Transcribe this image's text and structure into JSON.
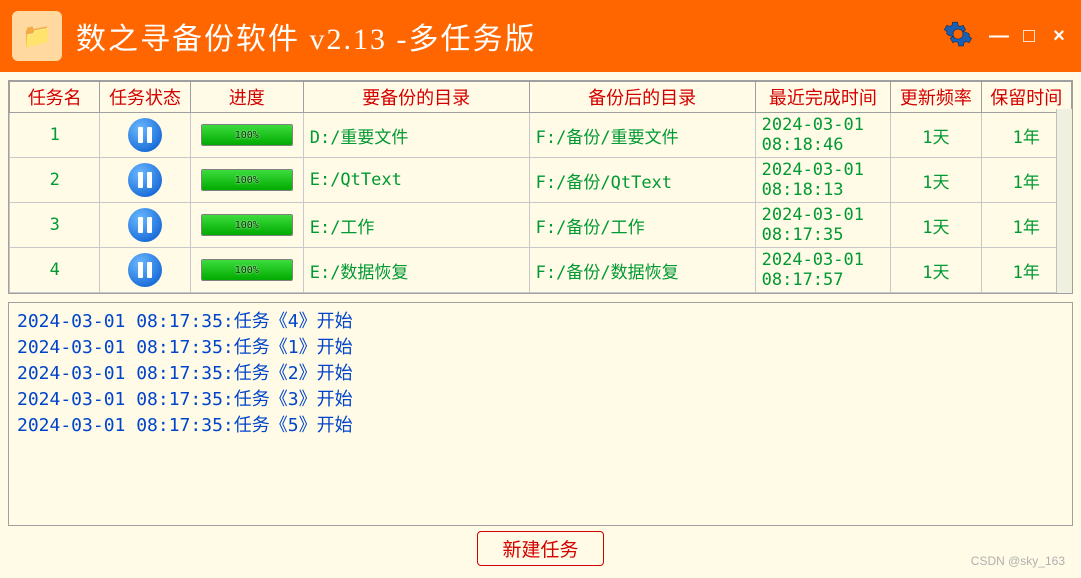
{
  "titlebar": {
    "title": "数之寻备份软件  v2.13 -多任务版",
    "accent_color": "#ff6600",
    "text_color": "#ffffff"
  },
  "columns": {
    "name": "任务名",
    "status": "任务状态",
    "prog": "进度",
    "src": "要备份的目录",
    "dst": "备份后的目录",
    "time": "最近完成时间",
    "freq": "更新频率",
    "keep": "保留时间"
  },
  "column_widths": {
    "name": 80,
    "status": 80,
    "prog": 100,
    "src": 200,
    "dst": 200,
    "time": 120,
    "freq": 80,
    "keep": 80
  },
  "header_color": "#d40000",
  "cell_text_color": "#009933",
  "background_color": "#fffbe6",
  "border_color": "#a0a0a0",
  "progress_fill_color": "#00aa00",
  "pause_icon_color": "#0055cc",
  "rows": [
    {
      "name": "1",
      "progress": "100%",
      "src": "D:/重要文件",
      "dst": "F:/备份/重要文件",
      "time": "2024-03-01 08:18:46",
      "freq": "1天",
      "keep": "1年"
    },
    {
      "name": "2",
      "progress": "100%",
      "src": "E:/QtText",
      "dst": "F:/备份/QtText",
      "time": "2024-03-01 08:18:13",
      "freq": "1天",
      "keep": "1年"
    },
    {
      "name": "3",
      "progress": "100%",
      "src": "E:/工作",
      "dst": "F:/备份/工作",
      "time": "2024-03-01 08:17:35",
      "freq": "1天",
      "keep": "1年"
    },
    {
      "name": "4",
      "progress": "100%",
      "src": "E:/数据恢复",
      "dst": "F:/备份/数据恢复",
      "time": "2024-03-01 08:17:57",
      "freq": "1天",
      "keep": "1年"
    }
  ],
  "log": [
    "2024-03-01 08:17:35:任务《4》开始",
    "2024-03-01 08:17:35:任务《1》开始",
    "2024-03-01 08:17:35:任务《2》开始",
    "2024-03-01 08:17:35:任务《3》开始",
    "2024-03-01 08:17:35:任务《5》开始"
  ],
  "log_color": "#0044cc",
  "footer": {
    "new_task_label": "新建任务",
    "button_border_color": "#d40000"
  },
  "watermark": "CSDN @sky_163"
}
